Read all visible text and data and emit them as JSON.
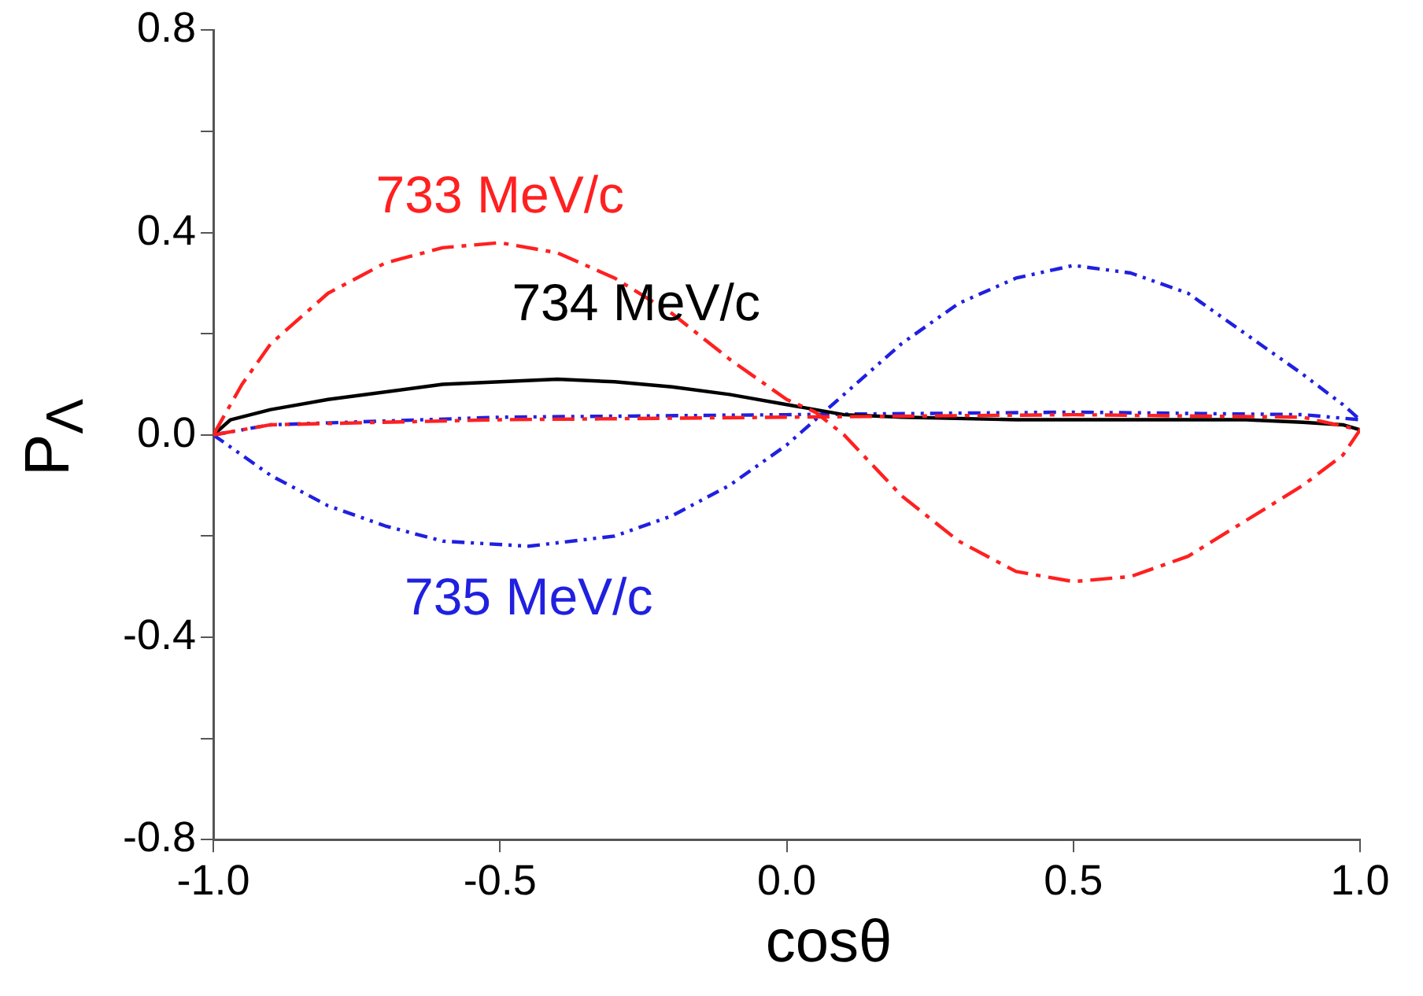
{
  "chart_data": {
    "type": "line",
    "xlabel": "cosθ",
    "ylabel": "P$_{Λ}$",
    "xlim": [
      -1,
      1
    ],
    "ylim": [
      -0.8,
      0.8
    ],
    "xticks": [
      {
        "value": -1,
        "label": "-1.0"
      },
      -0.5,
      {
        "value": 0,
        "label": "0.0"
      },
      0.5,
      {
        "value": 1,
        "label": "1.0"
      }
    ],
    "yticks": [
      {
        "value": -0.8,
        "label": "-0.8"
      },
      {
        "value": -0.6,
        "label": null
      },
      {
        "value": -0.4,
        "label": "-0.4"
      },
      {
        "value": -0.2,
        "label": null
      },
      {
        "value": 0,
        "label": "0.0"
      },
      {
        "value": 0.2,
        "label": null
      },
      {
        "value": 0.4,
        "label": "0.4"
      },
      {
        "value": 0.6,
        "label": null
      },
      {
        "value": 0.8,
        "label": "0.8"
      }
    ],
    "grid": false,
    "legend": false,
    "marker": "none",
    "series": [
      {
        "name": "733 MeV/c",
        "color": "#ff2020",
        "line_style": "dashed",
        "x": [
          -1,
          -0.95,
          -0.9,
          -0.8,
          -0.7,
          -0.6,
          -0.5,
          -0.4,
          -0.3,
          -0.2,
          -0.1,
          0,
          0.05,
          0.1,
          0.2,
          0.3,
          0.4,
          0.5,
          0.6,
          0.7,
          0.8,
          0.9,
          0.97,
          1
        ],
        "values": [
          0,
          0.1,
          0.18,
          0.28,
          0.34,
          0.37,
          0.38,
          0.36,
          0.31,
          0.24,
          0.15,
          0.07,
          0.045,
          0,
          -0.12,
          -0.21,
          -0.27,
          -0.29,
          -0.28,
          -0.24,
          -0.17,
          -0.1,
          -0.04,
          0.01
        ]
      },
      {
        "color": "#ff2020",
        "line_style": "dashed",
        "x": [
          -1,
          -0.9,
          -0.5,
          0,
          0.5,
          0.9,
          1
        ],
        "values": [
          0,
          0.02,
          0.03,
          0.035,
          0.04,
          0.035,
          0.01
        ]
      },
      {
        "name": "734 MeV/c",
        "color": "#000000",
        "line_style": "solid",
        "x": [
          -1,
          -0.97,
          -0.9,
          -0.8,
          -0.6,
          -0.4,
          -0.3,
          -0.2,
          -0.1,
          0,
          0.1,
          0.2,
          0.4,
          0.6,
          0.8,
          0.9,
          0.97,
          1
        ],
        "values": [
          0,
          0.03,
          0.05,
          0.07,
          0.1,
          0.11,
          0.105,
          0.095,
          0.08,
          0.06,
          0.04,
          0.035,
          0.03,
          0.03,
          0.03,
          0.025,
          0.02,
          0.01
        ]
      },
      {
        "name": "735 MeV/c",
        "color": "#2020e0",
        "line_style": "dotted",
        "x": [
          -1,
          -0.9,
          -0.8,
          -0.7,
          -0.6,
          -0.45,
          -0.3,
          -0.2,
          -0.1,
          0,
          0.05,
          0.1,
          0.2,
          0.3,
          0.4,
          0.5,
          0.6,
          0.7,
          0.8,
          0.9,
          0.97,
          1
        ],
        "values": [
          0,
          -0.08,
          -0.14,
          -0.18,
          -0.21,
          -0.22,
          -0.2,
          -0.16,
          -0.1,
          -0.02,
          0.03,
          0.08,
          0.18,
          0.26,
          0.31,
          0.335,
          0.32,
          0.28,
          0.2,
          0.12,
          0.06,
          0.03
        ]
      },
      {
        "color": "#2020e0",
        "line_style": "dotted",
        "x": [
          -1,
          -0.9,
          -0.5,
          0,
          0.5,
          0.9,
          1
        ],
        "values": [
          0,
          0.02,
          0.035,
          0.04,
          0.045,
          0.04,
          0.03
        ]
      }
    ]
  }
}
